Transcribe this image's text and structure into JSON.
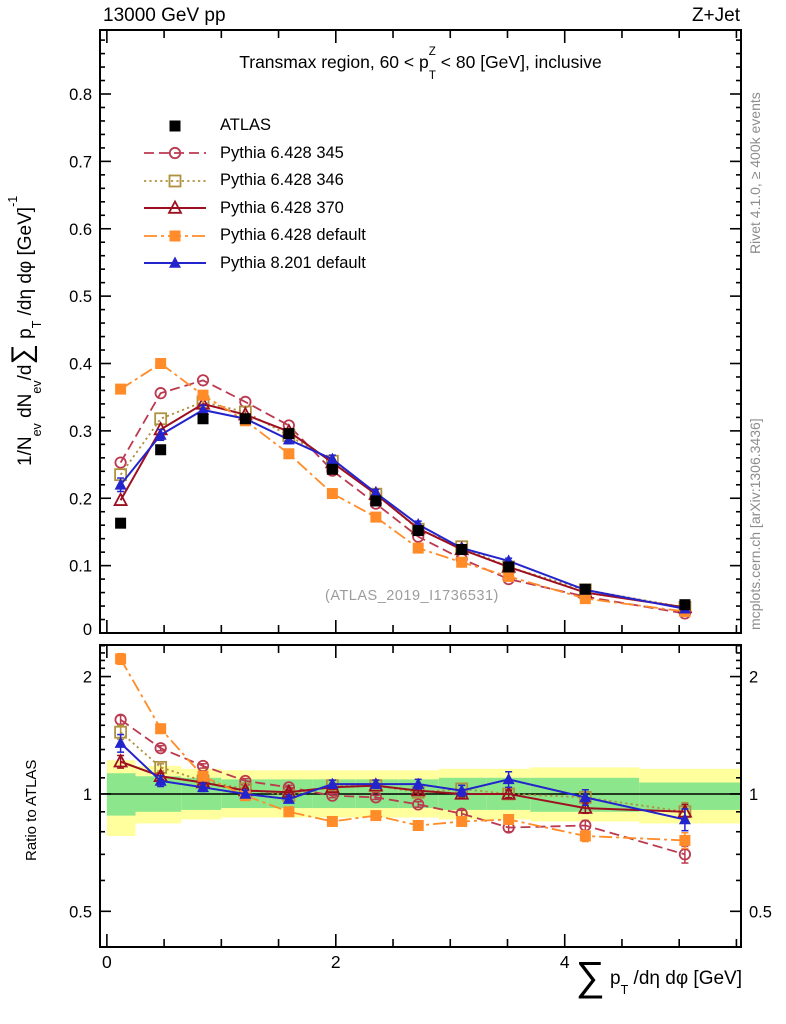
{
  "header": {
    "left": "13000 GeV pp",
    "right": "Z+Jet"
  },
  "side_notes": {
    "top": "Rivet 4.1.0, ≥ 400k events",
    "bottom": "mcplots.cern.ch [arXiv:1306.3436]"
  },
  "watermark": "(ATLAS_2019_I1736531)",
  "chart_data": {
    "type": "line",
    "title": "Transmax region, 60 < p^{Z}_{T} < 80 [GeV], inclusive",
    "ylabel": "1/N_{ev} dN_{ev}/d∑ p_{T} /dη dφ  [GeV]^{-1}",
    "ratio_ylabel": "Ratio to ATLAS",
    "xlabel": "∑ p_{T} /dη dφ [GeV]",
    "legend_position": "top-left",
    "grid": false,
    "axes": {
      "x": [
        -0.06,
        5.54
      ],
      "main_y": [
        0,
        0.895
      ],
      "ratio_y": [
        0.405,
        2.41
      ],
      "ratio_log": true,
      "x_major_ticks": [
        {
          "v": 0,
          "label": "0"
        },
        {
          "v": 2,
          "label": "2"
        },
        {
          "v": 4,
          "label": "4"
        }
      ],
      "x_minor_step": 0.5,
      "main_y_minor_step": 0.02,
      "main_y_tick_labels": [
        {
          "v": 0,
          "label": "0"
        },
        {
          "v": 0.1,
          "label": "0.1"
        },
        {
          "v": 0.2,
          "label": "0.2"
        },
        {
          "v": 0.3,
          "label": "0.3"
        },
        {
          "v": 0.4,
          "label": "0.4"
        },
        {
          "v": 0.5,
          "label": "0.5"
        },
        {
          "v": 0.6,
          "label": "0.6"
        },
        {
          "v": 0.7,
          "label": "0.7"
        },
        {
          "v": 0.8,
          "label": "0.8"
        }
      ],
      "ratio_y_ticks": [
        {
          "v": 0.5,
          "label": "0.5"
        },
        {
          "v": 1,
          "label": "1"
        },
        {
          "v": 2,
          "label": "2"
        }
      ]
    },
    "x": [
      0.12,
      0.47,
      0.84,
      1.21,
      1.59,
      1.97,
      2.35,
      2.72,
      3.1,
      3.51,
      4.18,
      5.05
    ],
    "bin_edges": [
      0,
      0.25,
      0.65,
      1.0,
      1.4,
      1.8,
      2.17,
      2.55,
      2.9,
      3.32,
      3.7,
      4.65,
      5.54
    ],
    "series": [
      {
        "name": "ATLAS",
        "color": "#000000",
        "marker": "square-filled",
        "line": "none",
        "values": [
          0.163,
          0.272,
          0.318,
          0.318,
          0.296,
          0.243,
          0.196,
          0.152,
          0.124,
          0.098,
          0.065,
          0.042
        ],
        "errors": [
          0.004,
          0.004,
          0.004,
          0.004,
          0.004,
          0.004,
          0.004,
          0.003,
          0.003,
          0.003,
          0.002,
          0.002
        ],
        "ratio": null,
        "ratio_errors": null
      },
      {
        "name": "Pythia 6.428 345",
        "color": "#bb3a50",
        "marker": "circle-open",
        "line": "dashed",
        "values": [
          0.253,
          0.356,
          0.375,
          0.343,
          0.308,
          0.241,
          0.192,
          0.143,
          0.11,
          0.08,
          0.054,
          0.029
        ],
        "errors": null,
        "ratio": [
          1.55,
          1.31,
          1.18,
          1.08,
          1.04,
          0.99,
          0.98,
          0.94,
          0.89,
          0.82,
          0.83,
          0.7
        ],
        "ratio_errors": [
          0.04,
          0.02,
          0.015,
          0.015,
          0.012,
          0.012,
          0.012,
          0.015,
          0.018,
          0.02,
          0.025,
          0.035
        ]
      },
      {
        "name": "Pythia 6.428 346",
        "color": "#b0913f",
        "marker": "square-open",
        "line": "dotted",
        "values": [
          0.235,
          0.318,
          0.343,
          0.328,
          0.293,
          0.255,
          0.206,
          0.154,
          0.128,
          0.098,
          0.064,
          0.038
        ],
        "errors": null,
        "ratio": [
          1.44,
          1.17,
          1.08,
          1.03,
          0.99,
          1.05,
          1.05,
          1.01,
          1.03,
          1.0,
          0.98,
          0.9
        ],
        "ratio_errors": [
          0.06,
          0.025,
          0.02,
          0.018,
          0.015,
          0.015,
          0.015,
          0.02,
          0.022,
          0.028,
          0.032,
          0.05
        ]
      },
      {
        "name": "Pythia 6.428 370",
        "color": "#9c1021",
        "marker": "triangle-open",
        "line": "solid",
        "values": [
          0.197,
          0.302,
          0.34,
          0.324,
          0.299,
          0.253,
          0.206,
          0.155,
          0.124,
          0.098,
          0.06,
          0.038
        ],
        "errors": null,
        "ratio": [
          1.21,
          1.11,
          1.07,
          1.02,
          1.01,
          1.04,
          1.05,
          1.02,
          1.0,
          1.0,
          0.92,
          0.9
        ],
        "ratio_errors": [
          0.045,
          0.02,
          0.015,
          0.015,
          0.012,
          0.012,
          0.012,
          0.015,
          0.018,
          0.022,
          0.028,
          0.04
        ]
      },
      {
        "name": "Pythia 6.428 default",
        "color": "#ff8c28",
        "marker": "square-filled",
        "line": "dashdot",
        "values": [
          0.362,
          0.4,
          0.353,
          0.315,
          0.266,
          0.207,
          0.172,
          0.126,
          0.105,
          0.084,
          0.051,
          0.032
        ],
        "errors": null,
        "ratio": [
          2.22,
          1.47,
          1.11,
          0.99,
          0.9,
          0.85,
          0.88,
          0.83,
          0.85,
          0.86,
          0.78,
          0.76
        ],
        "ratio_errors": [
          0.07,
          0.035,
          0.02,
          0.018,
          0.015,
          0.012,
          0.012,
          0.015,
          0.018,
          0.022,
          0.025,
          0.035
        ]
      },
      {
        "name": "Pythia 8.201 default",
        "color": "#2424cc",
        "marker": "triangle-filled",
        "line": "solid",
        "values": [
          0.22,
          0.294,
          0.331,
          0.318,
          0.287,
          0.258,
          0.208,
          0.161,
          0.126,
          0.107,
          0.064,
          0.036
        ],
        "errors": [
          0.01,
          0.008,
          0.007,
          0.006,
          0.006,
          0.006,
          0.005,
          0.005,
          0.004,
          0.004,
          0.003,
          0.003
        ],
        "ratio": [
          1.35,
          1.08,
          1.04,
          1.0,
          0.97,
          1.06,
          1.06,
          1.06,
          1.02,
          1.09,
          0.98,
          0.86
        ],
        "ratio_errors": [
          0.07,
          0.035,
          0.025,
          0.022,
          0.02,
          0.025,
          0.025,
          0.03,
          0.032,
          0.05,
          0.045,
          0.055
        ]
      }
    ],
    "ratio_bands": {
      "yellow_color": "#ffff9e",
      "green_color": "#8ce68c",
      "yellow_lo": [
        0.78,
        0.84,
        0.86,
        0.87,
        0.87,
        0.87,
        0.87,
        0.87,
        0.86,
        0.86,
        0.85,
        0.84
      ],
      "yellow_hi": [
        1.22,
        1.18,
        1.16,
        1.15,
        1.15,
        1.15,
        1.15,
        1.15,
        1.16,
        1.16,
        1.17,
        1.16
      ],
      "green_lo": [
        0.88,
        0.9,
        0.91,
        0.92,
        0.92,
        0.92,
        0.92,
        0.92,
        0.91,
        0.91,
        0.9,
        0.91
      ],
      "green_hi": [
        1.13,
        1.11,
        1.1,
        1.09,
        1.09,
        1.09,
        1.09,
        1.09,
        1.1,
        1.1,
        1.1,
        1.07
      ]
    }
  }
}
